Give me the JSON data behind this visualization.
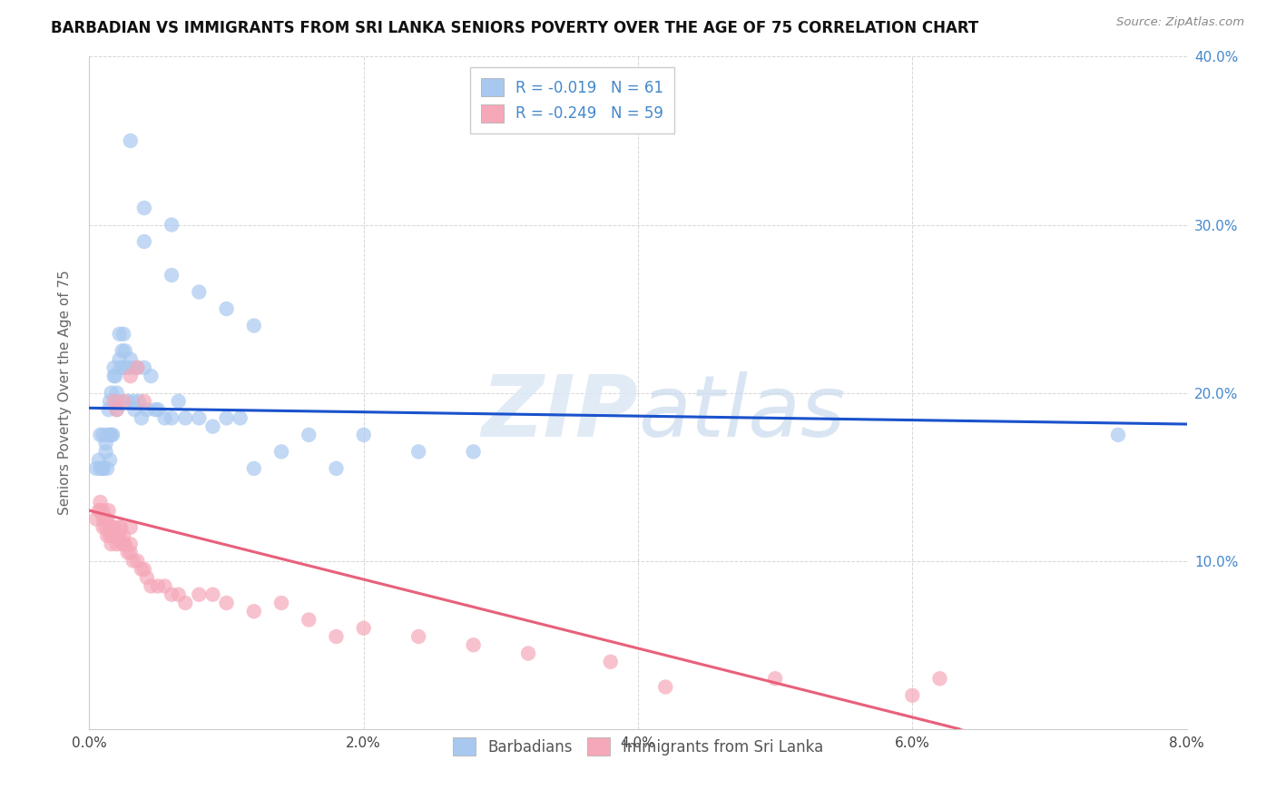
{
  "title": "BARBADIAN VS IMMIGRANTS FROM SRI LANKA SENIORS POVERTY OVER THE AGE OF 75 CORRELATION CHART",
  "source": "Source: ZipAtlas.com",
  "ylabel": "Seniors Poverty Over the Age of 75",
  "xlim": [
    0.0,
    0.08
  ],
  "ylim": [
    0.0,
    0.4
  ],
  "xticks": [
    0.0,
    0.02,
    0.04,
    0.06,
    0.08
  ],
  "xtick_labels": [
    "0.0%",
    "2.0%",
    "4.0%",
    "6.0%",
    "8.0%"
  ],
  "yticks": [
    0.0,
    0.1,
    0.2,
    0.3,
    0.4
  ],
  "ytick_labels_right": [
    "",
    "10.0%",
    "20.0%",
    "30.0%",
    "40.0%"
  ],
  "blue_R": -0.019,
  "blue_N": 61,
  "pink_R": -0.249,
  "pink_N": 59,
  "legend_label_blue": "Barbadians",
  "legend_label_pink": "Immigrants from Sri Lanka",
  "blue_color": "#a8c8f0",
  "pink_color": "#f5a8b8",
  "blue_line_color": "#1a52cc",
  "pink_line_color": "#e8607a",
  "grid_color": "#cccccc",
  "title_color": "#111111",
  "source_color": "#888888",
  "label_color": "#666666",
  "right_axis_color": "#4488cc",
  "blue_line_intercept": 0.191,
  "blue_line_slope": -0.12,
  "pink_line_intercept": 0.13,
  "pink_line_slope": -2.05,
  "blue_x": [
    0.0005,
    0.0007,
    0.0008,
    0.0008,
    0.001,
    0.001,
    0.001,
    0.0012,
    0.0012,
    0.0013,
    0.0013,
    0.0014,
    0.0015,
    0.0015,
    0.0015,
    0.0016,
    0.0016,
    0.0017,
    0.0018,
    0.0018,
    0.0019,
    0.002,
    0.002,
    0.0021,
    0.0022,
    0.0022,
    0.0023,
    0.0024,
    0.0025,
    0.0025,
    0.0026,
    0.0027,
    0.0028,
    0.003,
    0.003,
    0.0032,
    0.0033,
    0.0035,
    0.0036,
    0.0038,
    0.004,
    0.0042,
    0.0045,
    0.0048,
    0.005,
    0.0055,
    0.006,
    0.0065,
    0.007,
    0.008,
    0.009,
    0.01,
    0.011,
    0.012,
    0.014,
    0.016,
    0.018,
    0.02,
    0.024,
    0.028,
    0.075
  ],
  "blue_y": [
    0.155,
    0.16,
    0.155,
    0.175,
    0.155,
    0.155,
    0.175,
    0.17,
    0.165,
    0.155,
    0.175,
    0.19,
    0.16,
    0.175,
    0.195,
    0.175,
    0.2,
    0.175,
    0.21,
    0.215,
    0.21,
    0.19,
    0.2,
    0.195,
    0.235,
    0.22,
    0.215,
    0.225,
    0.215,
    0.235,
    0.225,
    0.215,
    0.195,
    0.22,
    0.215,
    0.195,
    0.19,
    0.215,
    0.195,
    0.185,
    0.215,
    0.19,
    0.21,
    0.19,
    0.19,
    0.185,
    0.185,
    0.195,
    0.185,
    0.185,
    0.18,
    0.185,
    0.185,
    0.155,
    0.165,
    0.175,
    0.155,
    0.175,
    0.165,
    0.165,
    0.175
  ],
  "blue_y_high": [
    0.35,
    0.31,
    0.29,
    0.27,
    0.26,
    0.25,
    0.24,
    0.3
  ],
  "blue_x_high": [
    0.003,
    0.004,
    0.004,
    0.006,
    0.008,
    0.01,
    0.012,
    0.006
  ],
  "pink_x": [
    0.0005,
    0.0007,
    0.0008,
    0.0008,
    0.001,
    0.001,
    0.001,
    0.0012,
    0.0012,
    0.0013,
    0.0013,
    0.0014,
    0.0015,
    0.0015,
    0.0016,
    0.0016,
    0.0017,
    0.0018,
    0.0019,
    0.002,
    0.0021,
    0.0022,
    0.0022,
    0.0023,
    0.0024,
    0.0025,
    0.0025,
    0.0026,
    0.0028,
    0.003,
    0.003,
    0.0032,
    0.0035,
    0.0038,
    0.004,
    0.0042,
    0.0045,
    0.005,
    0.0055,
    0.006,
    0.0065,
    0.007,
    0.008,
    0.009,
    0.01,
    0.012,
    0.014,
    0.016,
    0.018,
    0.02,
    0.024,
    0.028,
    0.032,
    0.038,
    0.042,
    0.05,
    0.06,
    0.062,
    0.003
  ],
  "pink_y": [
    0.125,
    0.13,
    0.13,
    0.135,
    0.12,
    0.125,
    0.13,
    0.12,
    0.125,
    0.115,
    0.125,
    0.13,
    0.115,
    0.12,
    0.11,
    0.115,
    0.12,
    0.12,
    0.115,
    0.11,
    0.115,
    0.115,
    0.12,
    0.12,
    0.11,
    0.11,
    0.115,
    0.11,
    0.105,
    0.105,
    0.11,
    0.1,
    0.1,
    0.095,
    0.095,
    0.09,
    0.085,
    0.085,
    0.085,
    0.08,
    0.08,
    0.075,
    0.08,
    0.08,
    0.075,
    0.07,
    0.075,
    0.065,
    0.055,
    0.06,
    0.055,
    0.05,
    0.045,
    0.04,
    0.025,
    0.03,
    0.02,
    0.03,
    0.12
  ],
  "pink_y_high": [
    0.195,
    0.19,
    0.195,
    0.21,
    0.215,
    0.195
  ],
  "pink_x_high": [
    0.0018,
    0.002,
    0.0025,
    0.003,
    0.0035,
    0.004
  ]
}
